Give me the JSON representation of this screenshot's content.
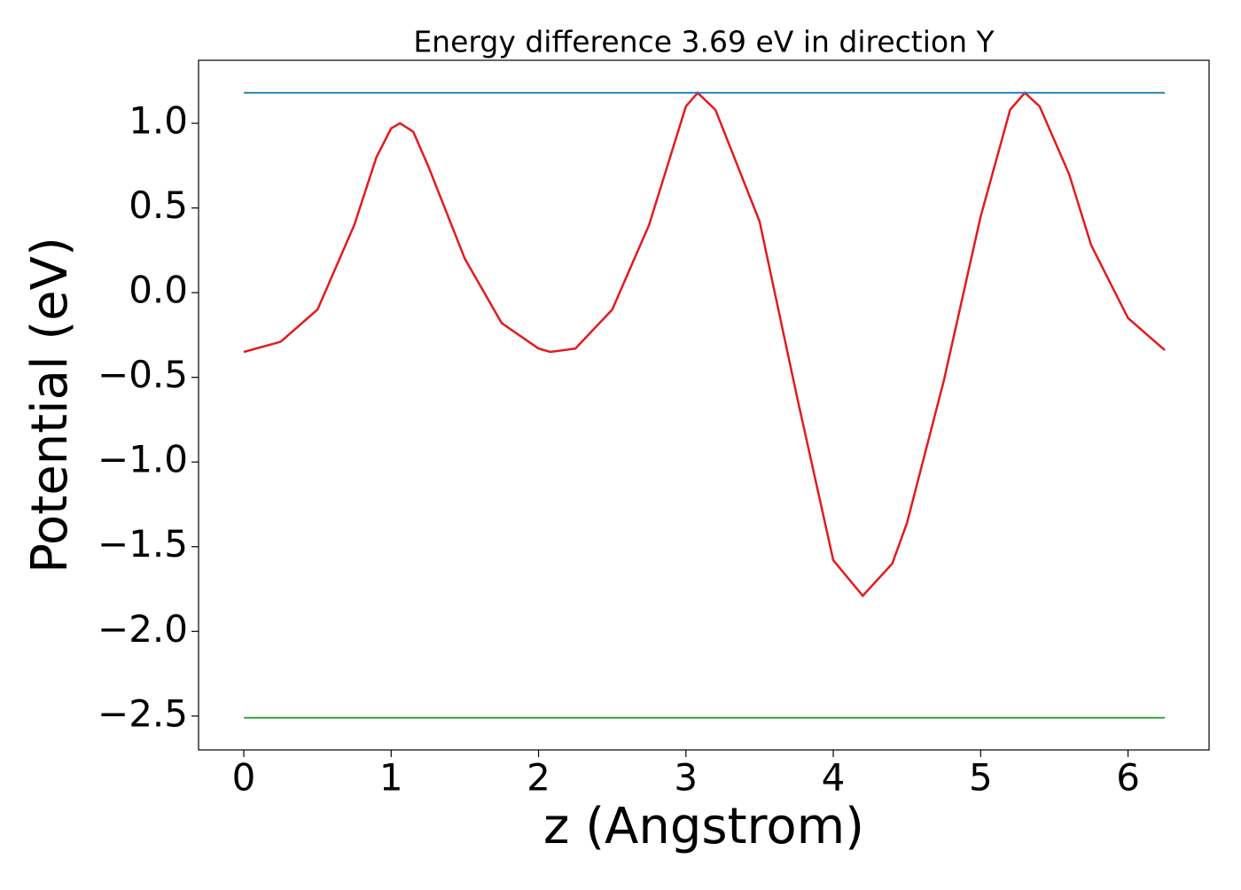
{
  "chart_data": {
    "type": "line",
    "title": "Energy difference 3.69 eV in direction Y",
    "x_label": "z (Angstrom)",
    "y_label": "Potential (eV)",
    "series": [
      {
        "color": "#e31a1c",
        "x": [
          0,
          0.25,
          0.5,
          0.75,
          0.9,
          1.0,
          1.06,
          1.15,
          1.25,
          1.5,
          1.75,
          2.0,
          2.08,
          2.25,
          2.5,
          2.75,
          3.0,
          3.08,
          3.2,
          3.5,
          3.75,
          4.0,
          4.2,
          4.4,
          4.5,
          4.75,
          5.0,
          5.2,
          5.3,
          5.4,
          5.6,
          5.75,
          6.0,
          6.25
        ],
        "values": [
          -0.35,
          -0.29,
          -0.1,
          0.4,
          0.8,
          0.97,
          1.0,
          0.95,
          0.75,
          0.2,
          -0.18,
          -0.33,
          -0.35,
          -0.33,
          -0.1,
          0.4,
          1.1,
          1.18,
          1.08,
          0.42,
          -0.6,
          -1.58,
          -1.79,
          -1.6,
          -1.36,
          -0.52,
          0.45,
          1.08,
          1.18,
          1.1,
          0.7,
          0.28,
          -0.15,
          -0.34
        ]
      },
      {
        "color": "#1f77b4",
        "x": [
          0,
          6.25
        ],
        "values": [
          1.18,
          1.18
        ]
      },
      {
        "color": "#2ca02c",
        "x": [
          0,
          6.25
        ],
        "values": [
          -2.51,
          -2.51
        ]
      }
    ],
    "xlim": [
      -0.307,
      6.55
    ],
    "ylim": [
      -2.7,
      1.372
    ],
    "xticks": [
      0,
      1,
      2,
      3,
      4,
      5,
      6
    ],
    "yticks": [
      {
        "value": -2.5,
        "label": "−2.5"
      },
      {
        "value": -2.0,
        "label": "−2.0"
      },
      {
        "value": -1.5,
        "label": "−1.5"
      },
      {
        "value": -1.0,
        "label": "−1.0"
      },
      {
        "value": -0.5,
        "label": "−0.5"
      },
      {
        "value": 0.0,
        "label": "0.0"
      },
      0.5,
      {
        "value": 1.0,
        "label": "1.0"
      }
    ]
  }
}
